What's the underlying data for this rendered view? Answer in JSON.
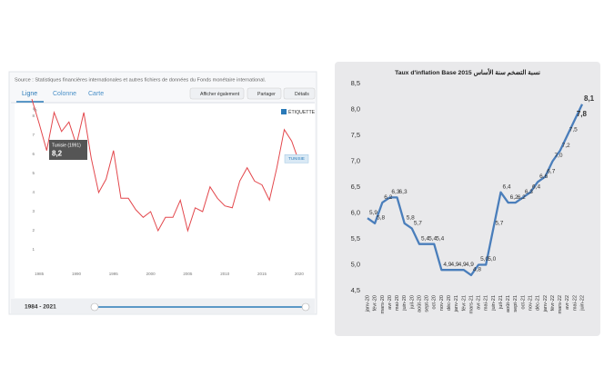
{
  "ui": {
    "source": "Source : Statistiques financières internationales et autres fichiers de données du Fonds monétaire international.",
    "tabs": [
      "Ligne",
      "Colonne",
      "Carte"
    ],
    "buttons": [
      "Afficher également",
      "Partager",
      "Détails"
    ],
    "label_toggle": "ÉTIQUETTE",
    "range": "1984 - 2021"
  },
  "chart_data": [
    {
      "type": "line",
      "y_label": "%",
      "tooltip": {
        "title": "Tunisie (1991)",
        "value": "8,2"
      },
      "x": [
        1984,
        1985,
        1986,
        1987,
        1988,
        1989,
        1990,
        1991,
        1992,
        1993,
        1994,
        1995,
        1996,
        1997,
        1998,
        1999,
        2000,
        2001,
        2002,
        2003,
        2004,
        2005,
        2006,
        2007,
        2008,
        2009,
        2010,
        2011,
        2012,
        2013,
        2014,
        2015,
        2016,
        2017,
        2018,
        2019,
        2020,
        2021
      ],
      "series": [
        {
          "name": "TUNISIE",
          "color": "#e3474c",
          "values": [
            8.9,
            7.6,
            6.2,
            8.2,
            7.2,
            7.7,
            6.5,
            8.2,
            5.8,
            4.0,
            4.7,
            6.2,
            3.7,
            3.7,
            3.1,
            2.7,
            3.0,
            2.0,
            2.7,
            2.7,
            3.6,
            2.0,
            3.2,
            3.0,
            4.3,
            3.7,
            3.3,
            3.2,
            4.6,
            5.3,
            4.6,
            4.4,
            3.6,
            5.3,
            7.3,
            6.7,
            5.6,
            5.7
          ]
        }
      ],
      "xlim": [
        1984,
        2021
      ],
      "xticks": [
        1985,
        1990,
        1995,
        2000,
        2005,
        2010,
        2015,
        2020
      ],
      "ylim": [
        0,
        9
      ],
      "yticks": [
        1,
        2,
        3,
        4,
        5,
        6,
        7,
        8
      ],
      "grid": false
    },
    {
      "type": "line",
      "title": "Taux d'inflation Base 2015 نسبة التضخم سنة الأساس",
      "categories": [
        "janv-20",
        "févr-20",
        "mars-20",
        "avr-20",
        "mai-20",
        "juin-20",
        "juil-20",
        "août-20",
        "sept-20",
        "oct-20",
        "nov-20",
        "déc-20",
        "janv-21",
        "févr-21",
        "mars-21",
        "avr-21",
        "mai-21",
        "juin-21",
        "juil-21",
        "août-21",
        "sept-21",
        "oct-21",
        "nov-21",
        "déc-21",
        "janv-22",
        "févr-22",
        "mars-22",
        "avr-22",
        "mai-22",
        "juin-22"
      ],
      "series": [
        {
          "color": "#4a7ebb",
          "values": [
            5.9,
            5.8,
            6.2,
            6.3,
            6.3,
            5.8,
            5.7,
            5.4,
            5.4,
            5.4,
            4.9,
            4.9,
            4.9,
            4.9,
            4.8,
            5.0,
            5.0,
            5.7,
            6.4,
            6.2,
            6.2,
            6.3,
            6.4,
            6.6,
            6.7,
            7.0,
            7.2,
            7.5,
            7.8,
            8.1
          ],
          "value_labels": [
            "5,9",
            "5,8",
            "6,2",
            "6,3",
            "6,3",
            "5,8",
            "5,7",
            "5,4",
            "5,4",
            "5,4",
            "4,9",
            "4,9",
            "4,9",
            "4,9",
            "4,8",
            "5,0",
            "5,0",
            "5,7",
            "6,4",
            "6,2",
            "6,2",
            "6,3",
            "6,4",
            "6,6",
            "6,7",
            "7,0",
            "7,2",
            "7,5",
            "7,8",
            "8,1"
          ]
        }
      ],
      "ylim": [
        4.5,
        8.5
      ],
      "yticks": [
        {
          "value": 4.5,
          "label": "4,5"
        },
        {
          "value": 5,
          "label": "5,0"
        },
        {
          "value": 5.5,
          "label": "5,5"
        },
        {
          "value": 6,
          "label": "6,0"
        },
        {
          "value": 6.5,
          "label": "6,5"
        },
        {
          "value": 7,
          "label": "7,0"
        },
        {
          "value": 7.5,
          "label": "7,5"
        },
        {
          "value": 8,
          "label": "8,0"
        },
        {
          "value": 8.5,
          "label": "8,5"
        }
      ]
    }
  ]
}
